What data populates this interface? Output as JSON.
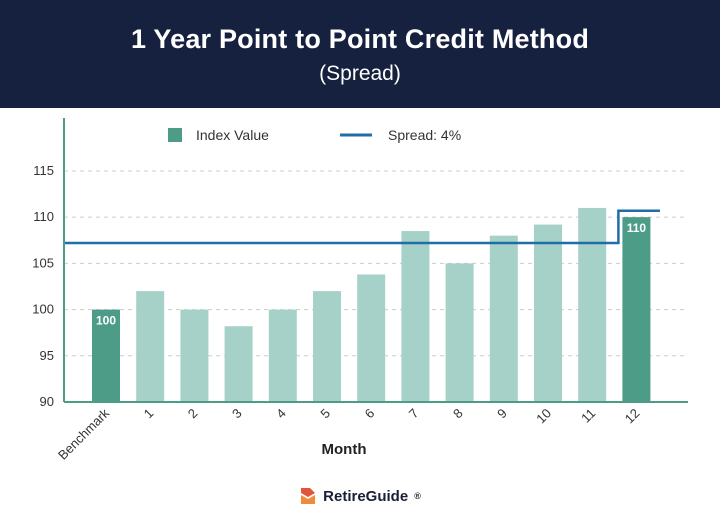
{
  "header": {
    "title": "1 Year Point to Point Credit Method",
    "subtitle": "(Spread)"
  },
  "chart_data": {
    "type": "bar",
    "categories": [
      "Benchmark",
      "1",
      "2",
      "3",
      "4",
      "5",
      "6",
      "7",
      "8",
      "9",
      "10",
      "11",
      "12"
    ],
    "values": [
      100,
      102,
      100,
      98.2,
      100,
      102,
      103.8,
      108.5,
      105,
      108,
      109.2,
      111,
      110
    ],
    "highlighted": [
      0,
      12
    ],
    "data_labels": {
      "0": "100",
      "12": "110"
    },
    "xlabel": "Month",
    "ylabel": "",
    "ylim": [
      90,
      119
    ],
    "yticks": [
      90,
      95,
      100,
      105,
      110,
      115
    ],
    "grid": true,
    "legend": {
      "placement": "top",
      "bars": "Index Value",
      "line": "Spread: 4%"
    },
    "spread_line": {
      "name": "Spread: 4%",
      "level_before": 107.2,
      "level_after": 110.7,
      "step_at_category": "12"
    },
    "colors": {
      "bar": "#a6d1c8",
      "highlight": "#4c9c87",
      "line": "#1f6ea6",
      "axis": "#4c9c87",
      "grid": "#cccccc"
    }
  },
  "footer": {
    "brand": "RetireGuide",
    "registered": "®"
  }
}
